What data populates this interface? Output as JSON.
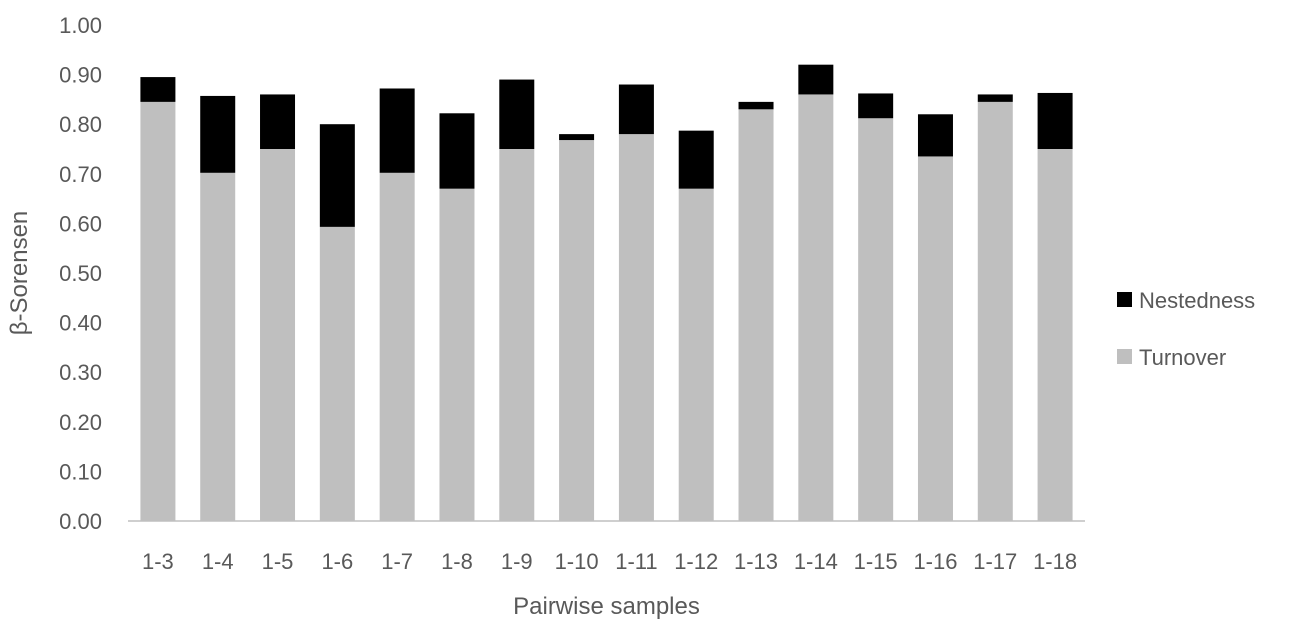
{
  "chart_data": {
    "type": "bar",
    "stacked": true,
    "title": "",
    "xlabel": "Pairwise samples",
    "ylabel": "β-Sorensen",
    "ylim": [
      0,
      1.0
    ],
    "ytick_step": 0.1,
    "ytick_labels": [
      "0.00",
      "0.10",
      "0.20",
      "0.30",
      "0.40",
      "0.50",
      "0.60",
      "0.70",
      "0.80",
      "0.90",
      "1.00"
    ],
    "grid": false,
    "legend_position": "right",
    "categories": [
      "1-3",
      "1-4",
      "1-5",
      "1-6",
      "1-7",
      "1-8",
      "1-9",
      "1-10",
      "1-11",
      "1-12",
      "1-13",
      "1-14",
      "1-15",
      "1-16",
      "1-17",
      "1-18"
    ],
    "series": [
      {
        "name": "Turnover",
        "color": "#bfbfbf",
        "values": [
          0.845,
          0.702,
          0.75,
          0.593,
          0.702,
          0.67,
          0.75,
          0.768,
          0.78,
          0.67,
          0.83,
          0.86,
          0.812,
          0.735,
          0.845,
          0.75
        ]
      },
      {
        "name": "Nestedness",
        "color": "#000000",
        "values": [
          0.05,
          0.155,
          0.11,
          0.207,
          0.17,
          0.152,
          0.14,
          0.012,
          0.1,
          0.117,
          0.015,
          0.06,
          0.05,
          0.085,
          0.015,
          0.113
        ]
      }
    ],
    "legend_order": [
      "Nestedness",
      "Turnover"
    ],
    "axis_color": "#bfbfbf",
    "text_color": "#595959"
  }
}
